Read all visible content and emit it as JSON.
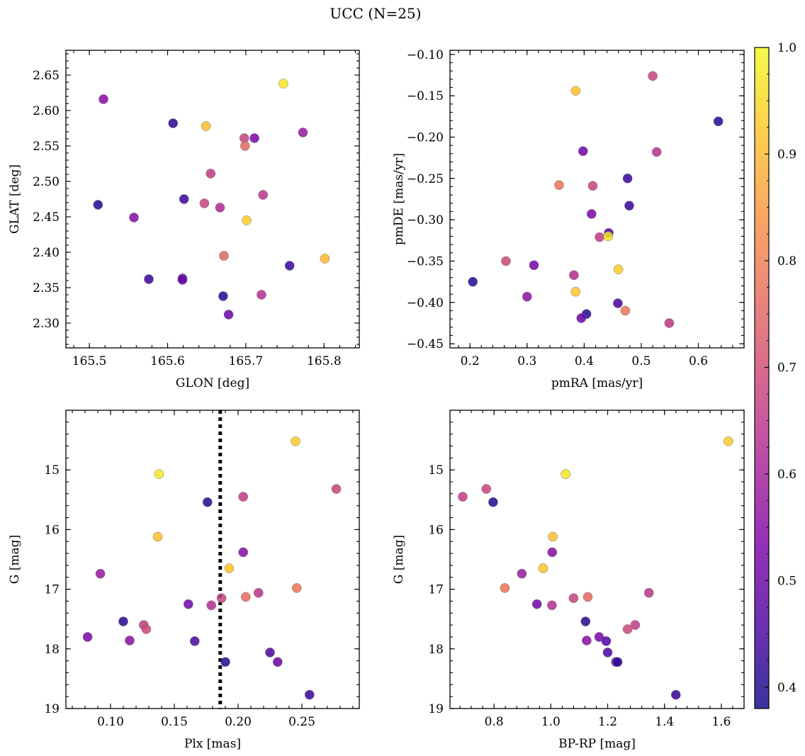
{
  "figure": {
    "title": "UCC (N=25)"
  },
  "colorbar": {
    "colormap": "plasma",
    "vmin": 0.38,
    "vmax": 1.0,
    "ticks": [
      0.4,
      0.5,
      0.6,
      0.7,
      0.8,
      0.9,
      1.0
    ],
    "tick_labels": [
      "0.4",
      "0.5",
      "0.6",
      "0.7",
      "0.8",
      "0.9",
      "1.0"
    ]
  },
  "chart_data": [
    {
      "type": "scatter",
      "xlabel": "GLON [deg]",
      "ylabel": "GLAT [deg]",
      "xlim": [
        165.47,
        165.845
      ],
      "ylim": [
        2.265,
        2.685
      ],
      "xticks": [
        165.5,
        165.6,
        165.7,
        165.8
      ],
      "xtick_labels": [
        "165.5",
        "165.6",
        "165.7",
        "165.8"
      ],
      "yticks": [
        2.3,
        2.35,
        2.4,
        2.45,
        2.5,
        2.55,
        2.6,
        2.65
      ],
      "ytick_labels": [
        "2.30",
        "2.35",
        "2.40",
        "2.45",
        "2.50",
        "2.55",
        "2.60",
        "2.65"
      ],
      "y_inverted": false,
      "x": [
        165.518,
        165.607,
        165.649,
        165.698,
        165.699,
        165.711,
        165.748,
        165.773,
        165.511,
        165.557,
        165.621,
        165.647,
        165.655,
        165.667,
        165.701,
        165.722,
        165.756,
        165.801,
        165.576,
        165.619,
        165.619,
        165.671,
        165.672,
        165.678,
        165.72
      ],
      "y": [
        2.616,
        2.582,
        2.578,
        2.561,
        2.55,
        2.561,
        2.638,
        2.569,
        2.467,
        2.449,
        2.475,
        2.469,
        2.511,
        2.463,
        2.445,
        2.481,
        2.381,
        2.391,
        2.362,
        2.363,
        2.361,
        2.338,
        2.395,
        2.312,
        2.34
      ],
      "color_values": [
        0.55,
        0.41,
        0.91,
        0.68,
        0.76,
        0.53,
        0.97,
        0.58,
        0.41,
        0.55,
        0.43,
        0.68,
        0.66,
        0.62,
        0.93,
        0.65,
        0.43,
        0.9,
        0.43,
        0.46,
        0.51,
        0.41,
        0.75,
        0.5,
        0.63
      ]
    },
    {
      "type": "scatter",
      "xlabel": "pmRA [mas/yr]",
      "ylabel": "pmDE [mas/yr]",
      "xlim": [
        0.165,
        0.68
      ],
      "ylim": [
        -0.455,
        -0.095
      ],
      "xticks": [
        0.2,
        0.3,
        0.4,
        0.5,
        0.6
      ],
      "xtick_labels": [
        "0.2",
        "0.3",
        "0.4",
        "0.5",
        "0.6"
      ],
      "yticks": [
        -0.45,
        -0.4,
        -0.35,
        -0.3,
        -0.25,
        -0.2,
        -0.15,
        -0.1
      ],
      "ytick_labels": [
        "−0.45",
        "−0.40",
        "−0.35",
        "−0.30",
        "−0.25",
        "−0.20",
        "−0.15",
        "−0.10"
      ],
      "y_inverted": false,
      "x": [
        0.52,
        0.385,
        0.635,
        0.398,
        0.527,
        0.476,
        0.356,
        0.415,
        0.479,
        0.413,
        0.443,
        0.427,
        0.442,
        0.263,
        0.312,
        0.46,
        0.382,
        0.385,
        0.205,
        0.3,
        0.404,
        0.459,
        0.472,
        0.395,
        0.549
      ],
      "y": [
        -0.126,
        -0.144,
        -0.181,
        -0.217,
        -0.218,
        -0.25,
        -0.258,
        -0.259,
        -0.283,
        -0.293,
        -0.316,
        -0.321,
        -0.32,
        -0.35,
        -0.355,
        -0.36,
        -0.367,
        -0.387,
        -0.375,
        -0.393,
        -0.414,
        -0.401,
        -0.41,
        -0.419,
        -0.425
      ],
      "color_values": [
        0.68,
        0.91,
        0.41,
        0.51,
        0.64,
        0.43,
        0.78,
        0.68,
        0.43,
        0.53,
        0.46,
        0.66,
        0.97,
        0.69,
        0.52,
        0.93,
        0.63,
        0.92,
        0.41,
        0.56,
        0.41,
        0.45,
        0.78,
        0.5,
        0.65
      ]
    },
    {
      "type": "scatter",
      "xlabel": "Plx [mas]",
      "ylabel": "G [mag]",
      "xlim": [
        0.065,
        0.295
      ],
      "ylim": [
        19.0,
        14.0
      ],
      "xticks": [
        0.1,
        0.15,
        0.2,
        0.25
      ],
      "xtick_labels": [
        "0.10",
        "0.15",
        "0.20",
        "0.25"
      ],
      "yticks": [
        15,
        16,
        17,
        18,
        19
      ],
      "ytick_labels": [
        "15",
        "16",
        "17",
        "18",
        "19"
      ],
      "y_inverted": true,
      "vertical_line": {
        "x": 0.186,
        "style": "dotted"
      },
      "x": [
        0.245,
        0.138,
        0.277,
        0.204,
        0.176,
        0.137,
        0.204,
        0.092,
        0.193,
        0.246,
        0.216,
        0.206,
        0.161,
        0.179,
        0.187,
        0.11,
        0.126,
        0.128,
        0.082,
        0.115,
        0.166,
        0.225,
        0.231,
        0.19,
        0.256
      ],
      "y": [
        14.52,
        15.07,
        15.32,
        15.45,
        15.54,
        16.12,
        16.38,
        16.74,
        16.65,
        16.98,
        17.06,
        17.13,
        17.25,
        17.27,
        17.15,
        17.54,
        17.6,
        17.67,
        17.8,
        17.86,
        17.87,
        18.06,
        18.22,
        18.22,
        18.77
      ],
      "color_values": [
        0.93,
        0.97,
        0.68,
        0.66,
        0.41,
        0.91,
        0.55,
        0.58,
        0.92,
        0.78,
        0.65,
        0.76,
        0.51,
        0.63,
        0.68,
        0.41,
        0.66,
        0.69,
        0.53,
        0.55,
        0.46,
        0.45,
        0.5,
        0.41,
        0.43
      ]
    },
    {
      "type": "scatter",
      "xlabel": "BP-RP [mag]",
      "ylabel": "G [mag]",
      "xlim": [
        0.645,
        1.68
      ],
      "ylim": [
        19.0,
        14.0
      ],
      "xticks": [
        0.8,
        1.0,
        1.2,
        1.4,
        1.6
      ],
      "xtick_labels": [
        "0.8",
        "1.0",
        "1.2",
        "1.4",
        "1.6"
      ],
      "yticks": [
        15,
        16,
        17,
        18,
        19
      ],
      "ytick_labels": [
        "15",
        "16",
        "17",
        "18",
        "19"
      ],
      "y_inverted": true,
      "x": [
        1.625,
        1.052,
        0.773,
        0.69,
        0.797,
        1.007,
        1.005,
        0.898,
        0.973,
        0.838,
        1.345,
        1.13,
        0.951,
        1.004,
        1.08,
        1.122,
        1.297,
        1.27,
        1.17,
        1.126,
        1.195,
        1.2,
        1.229,
        1.235,
        1.44
      ],
      "y": [
        14.52,
        15.07,
        15.32,
        15.45,
        15.54,
        16.12,
        16.38,
        16.74,
        16.65,
        16.98,
        17.06,
        17.13,
        17.25,
        17.27,
        17.15,
        17.54,
        17.6,
        17.67,
        17.8,
        17.86,
        17.87,
        18.06,
        18.22,
        18.22,
        18.77
      ],
      "color_values": [
        0.93,
        0.97,
        0.68,
        0.66,
        0.41,
        0.91,
        0.55,
        0.58,
        0.92,
        0.78,
        0.65,
        0.76,
        0.51,
        0.63,
        0.68,
        0.41,
        0.66,
        0.69,
        0.53,
        0.55,
        0.46,
        0.45,
        0.5,
        0.41,
        0.43
      ]
    }
  ]
}
